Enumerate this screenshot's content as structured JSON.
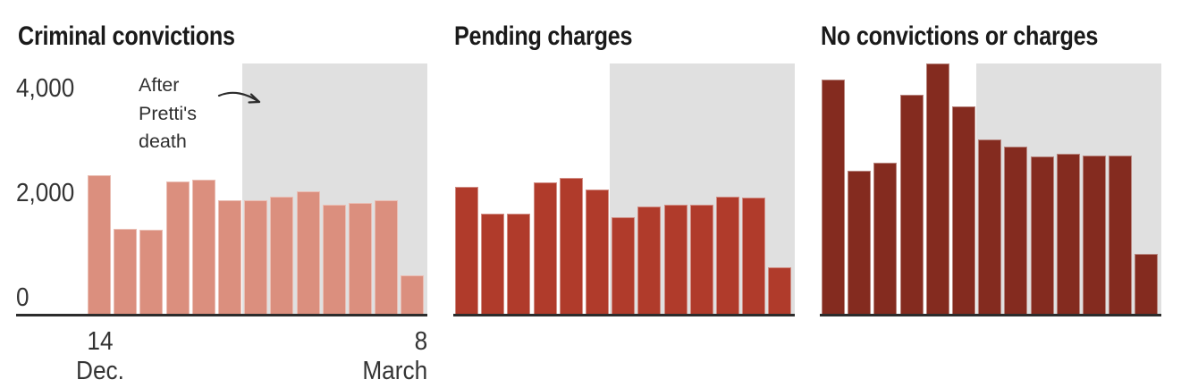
{
  "figure": {
    "background": "#ffffff",
    "title_color": "#1a1a1a",
    "label_color": "#343434",
    "axis_line_color": "#2c2c2c",
    "shade_color": "#e0e0e0"
  },
  "chart_data": [
    {
      "type": "bar",
      "title": "Criminal convictions",
      "bar_color": "#db8f7e",
      "values": [
        2650,
        1630,
        1620,
        2540,
        2570,
        2170,
        2170,
        2250,
        2350,
        2090,
        2130,
        2170,
        740
      ],
      "ylim": [
        0,
        4800
      ],
      "grid": false,
      "legend": false,
      "y_ticks": [
        {
          "value": 0,
          "label": "0"
        },
        {
          "value": 2000,
          "label": "2,000"
        },
        {
          "value": 4000,
          "label": "4,000"
        }
      ],
      "x_ticks": [
        {
          "day": "14",
          "month": "Dec.",
          "position": "first-bar"
        },
        {
          "day": "8",
          "month": "March",
          "position": "last-bar"
        }
      ],
      "shaded_region": {
        "label": "After Pretti's death",
        "start_bar_index": 6,
        "end_bar_index": 12,
        "color": "#e0e0e0"
      },
      "annotation": {
        "lines": [
          "After",
          "Pretti's",
          "death"
        ],
        "arrow_icon": "curved-arrow-right"
      }
    },
    {
      "type": "bar",
      "title": "Pending charges",
      "bar_color": "#b03b2b",
      "values": [
        2430,
        1920,
        1920,
        2520,
        2600,
        2390,
        1850,
        2050,
        2090,
        2090,
        2250,
        2230,
        890
      ],
      "ylim": [
        0,
        4800
      ],
      "grid": false,
      "legend": false,
      "shaded_region": {
        "start_bar_index": 6,
        "end_bar_index": 12,
        "color": "#e0e0e0"
      }
    },
    {
      "type": "bar",
      "title": "No convictions or charges",
      "bar_color": "#842b1f",
      "values": [
        4500,
        2740,
        2900,
        4200,
        4800,
        3980,
        3340,
        3210,
        3020,
        3070,
        3030,
        3030,
        1150
      ],
      "ylim": [
        0,
        4800
      ],
      "grid": false,
      "legend": false,
      "shaded_region": {
        "start_bar_index": 6,
        "end_bar_index": 12,
        "color": "#e0e0e0"
      }
    }
  ]
}
